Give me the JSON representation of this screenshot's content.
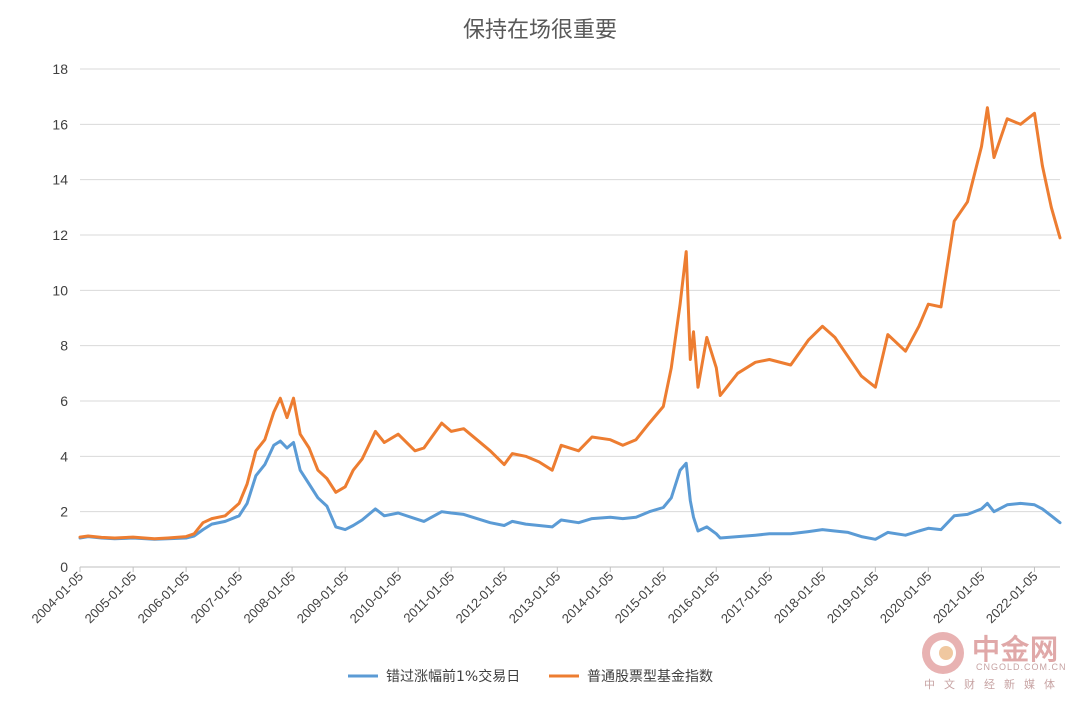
{
  "chart_data": {
    "type": "line",
    "title": "保持在场很重要",
    "xlabel": "",
    "ylabel": "",
    "ylim": [
      0,
      18
    ],
    "yticks": [
      0,
      2,
      4,
      6,
      8,
      10,
      12,
      14,
      16,
      18
    ],
    "xlim": [
      "2004-01-05",
      "2022-06-30"
    ],
    "xticks": [
      "2004-01-05",
      "2005-01-05",
      "2006-01-05",
      "2007-01-05",
      "2008-01-05",
      "2009-01-05",
      "2010-01-05",
      "2011-01-05",
      "2012-01-05",
      "2013-01-05",
      "2014-01-05",
      "2015-01-05",
      "2016-01-05",
      "2017-01-05",
      "2018-01-05",
      "2019-01-05",
      "2020-01-05",
      "2021-01-05",
      "2022-01-05"
    ],
    "grid": true,
    "legend_position": "bottom",
    "series": [
      {
        "name": "错过涨幅前1%交易日",
        "color": "#5b9bd5",
        "points": [
          [
            "2004-01-05",
            1.05
          ],
          [
            "2004-03-01",
            1.1
          ],
          [
            "2004-06-01",
            1.05
          ],
          [
            "2004-09-01",
            1.02
          ],
          [
            "2005-01-05",
            1.05
          ],
          [
            "2005-06-01",
            1.0
          ],
          [
            "2005-09-01",
            1.02
          ],
          [
            "2006-01-05",
            1.05
          ],
          [
            "2006-03-01",
            1.12
          ],
          [
            "2006-05-01",
            1.35
          ],
          [
            "2006-07-01",
            1.55
          ],
          [
            "2006-10-01",
            1.65
          ],
          [
            "2007-01-05",
            1.85
          ],
          [
            "2007-03-01",
            2.3
          ],
          [
            "2007-05-01",
            3.3
          ],
          [
            "2007-07-01",
            3.7
          ],
          [
            "2007-09-01",
            4.4
          ],
          [
            "2007-10-16",
            4.55
          ],
          [
            "2007-12-01",
            4.3
          ],
          [
            "2008-01-15",
            4.5
          ],
          [
            "2008-03-01",
            3.5
          ],
          [
            "2008-05-01",
            3.0
          ],
          [
            "2008-07-01",
            2.5
          ],
          [
            "2008-09-01",
            2.2
          ],
          [
            "2008-11-01",
            1.45
          ],
          [
            "2009-01-05",
            1.35
          ],
          [
            "2009-03-01",
            1.5
          ],
          [
            "2009-05-01",
            1.7
          ],
          [
            "2009-08-01",
            2.1
          ],
          [
            "2009-10-01",
            1.85
          ],
          [
            "2010-01-05",
            1.95
          ],
          [
            "2010-05-01",
            1.75
          ],
          [
            "2010-07-01",
            1.65
          ],
          [
            "2010-11-01",
            2.0
          ],
          [
            "2011-01-05",
            1.95
          ],
          [
            "2011-04-01",
            1.9
          ],
          [
            "2011-07-01",
            1.75
          ],
          [
            "2011-10-01",
            1.6
          ],
          [
            "2012-01-05",
            1.5
          ],
          [
            "2012-03-01",
            1.65
          ],
          [
            "2012-06-01",
            1.55
          ],
          [
            "2012-09-01",
            1.5
          ],
          [
            "2012-12-01",
            1.45
          ],
          [
            "2013-02-01",
            1.7
          ],
          [
            "2013-06-01",
            1.6
          ],
          [
            "2013-09-01",
            1.75
          ],
          [
            "2014-01-05",
            1.8
          ],
          [
            "2014-04-01",
            1.75
          ],
          [
            "2014-07-01",
            1.8
          ],
          [
            "2014-10-01",
            2.0
          ],
          [
            "2015-01-05",
            2.15
          ],
          [
            "2015-03-01",
            2.5
          ],
          [
            "2015-05-01",
            3.5
          ],
          [
            "2015-06-12",
            3.75
          ],
          [
            "2015-07-10",
            2.4
          ],
          [
            "2015-08-01",
            1.8
          ],
          [
            "2015-09-01",
            1.3
          ],
          [
            "2015-11-01",
            1.45
          ],
          [
            "2016-01-05",
            1.2
          ],
          [
            "2016-02-01",
            1.05
          ],
          [
            "2016-06-01",
            1.1
          ],
          [
            "2016-10-01",
            1.15
          ],
          [
            "2017-01-05",
            1.2
          ],
          [
            "2017-06-01",
            1.2
          ],
          [
            "2017-10-01",
            1.28
          ],
          [
            "2018-01-05",
            1.35
          ],
          [
            "2018-04-01",
            1.3
          ],
          [
            "2018-07-01",
            1.25
          ],
          [
            "2018-10-01",
            1.1
          ],
          [
            "2019-01-05",
            1.0
          ],
          [
            "2019-04-01",
            1.25
          ],
          [
            "2019-08-01",
            1.15
          ],
          [
            "2019-11-01",
            1.3
          ],
          [
            "2020-01-05",
            1.4
          ],
          [
            "2020-04-01",
            1.35
          ],
          [
            "2020-07-01",
            1.85
          ],
          [
            "2020-10-01",
            1.9
          ],
          [
            "2021-01-05",
            2.1
          ],
          [
            "2021-02-15",
            2.3
          ],
          [
            "2021-04-01",
            2.0
          ],
          [
            "2021-07-01",
            2.25
          ],
          [
            "2021-10-01",
            2.3
          ],
          [
            "2022-01-05",
            2.25
          ],
          [
            "2022-03-01",
            2.1
          ],
          [
            "2022-05-01",
            1.85
          ],
          [
            "2022-06-30",
            1.6
          ]
        ]
      },
      {
        "name": "普通股票型基金指数",
        "color": "#ed7d31",
        "points": [
          [
            "2004-01-05",
            1.08
          ],
          [
            "2004-03-01",
            1.12
          ],
          [
            "2004-06-01",
            1.07
          ],
          [
            "2004-09-01",
            1.05
          ],
          [
            "2005-01-05",
            1.08
          ],
          [
            "2005-06-01",
            1.02
          ],
          [
            "2005-09-01",
            1.05
          ],
          [
            "2006-01-05",
            1.1
          ],
          [
            "2006-03-01",
            1.2
          ],
          [
            "2006-05-01",
            1.6
          ],
          [
            "2006-07-01",
            1.75
          ],
          [
            "2006-10-01",
            1.85
          ],
          [
            "2007-01-05",
            2.3
          ],
          [
            "2007-03-01",
            3.0
          ],
          [
            "2007-05-01",
            4.2
          ],
          [
            "2007-07-01",
            4.6
          ],
          [
            "2007-09-01",
            5.6
          ],
          [
            "2007-10-16",
            6.1
          ],
          [
            "2007-12-01",
            5.4
          ],
          [
            "2008-01-15",
            6.1
          ],
          [
            "2008-03-01",
            4.8
          ],
          [
            "2008-05-01",
            4.3
          ],
          [
            "2008-07-01",
            3.5
          ],
          [
            "2008-09-01",
            3.2
          ],
          [
            "2008-11-01",
            2.7
          ],
          [
            "2009-01-05",
            2.9
          ],
          [
            "2009-03-01",
            3.5
          ],
          [
            "2009-05-01",
            3.9
          ],
          [
            "2009-08-01",
            4.9
          ],
          [
            "2009-10-01",
            4.5
          ],
          [
            "2010-01-05",
            4.8
          ],
          [
            "2010-05-01",
            4.2
          ],
          [
            "2010-07-01",
            4.3
          ],
          [
            "2010-11-01",
            5.2
          ],
          [
            "2011-01-05",
            4.9
          ],
          [
            "2011-04-01",
            5.0
          ],
          [
            "2011-07-01",
            4.6
          ],
          [
            "2011-10-01",
            4.2
          ],
          [
            "2012-01-05",
            3.7
          ],
          [
            "2012-03-01",
            4.1
          ],
          [
            "2012-06-01",
            4.0
          ],
          [
            "2012-09-01",
            3.8
          ],
          [
            "2012-12-01",
            3.5
          ],
          [
            "2013-02-01",
            4.4
          ],
          [
            "2013-06-01",
            4.2
          ],
          [
            "2013-09-01",
            4.7
          ],
          [
            "2014-01-05",
            4.6
          ],
          [
            "2014-04-01",
            4.4
          ],
          [
            "2014-07-01",
            4.6
          ],
          [
            "2014-10-01",
            5.2
          ],
          [
            "2015-01-05",
            5.8
          ],
          [
            "2015-03-01",
            7.2
          ],
          [
            "2015-05-01",
            9.5
          ],
          [
            "2015-06-12",
            11.4
          ],
          [
            "2015-07-10",
            7.5
          ],
          [
            "2015-08-01",
            8.5
          ],
          [
            "2015-09-01",
            6.5
          ],
          [
            "2015-11-01",
            8.3
          ],
          [
            "2016-01-05",
            7.2
          ],
          [
            "2016-02-01",
            6.2
          ],
          [
            "2016-06-01",
            7.0
          ],
          [
            "2016-10-01",
            7.4
          ],
          [
            "2017-01-05",
            7.5
          ],
          [
            "2017-06-01",
            7.3
          ],
          [
            "2017-10-01",
            8.2
          ],
          [
            "2018-01-05",
            8.7
          ],
          [
            "2018-04-01",
            8.3
          ],
          [
            "2018-07-01",
            7.6
          ],
          [
            "2018-10-01",
            6.9
          ],
          [
            "2019-01-05",
            6.5
          ],
          [
            "2019-04-01",
            8.4
          ],
          [
            "2019-08-01",
            7.8
          ],
          [
            "2019-11-01",
            8.7
          ],
          [
            "2020-01-05",
            9.5
          ],
          [
            "2020-04-01",
            9.4
          ],
          [
            "2020-07-01",
            12.5
          ],
          [
            "2020-10-01",
            13.2
          ],
          [
            "2021-01-05",
            15.2
          ],
          [
            "2021-02-15",
            16.6
          ],
          [
            "2021-04-01",
            14.8
          ],
          [
            "2021-07-01",
            16.2
          ],
          [
            "2021-10-01",
            16.0
          ],
          [
            "2022-01-05",
            16.4
          ],
          [
            "2022-03-01",
            14.5
          ],
          [
            "2022-05-01",
            13.0
          ],
          [
            "2022-06-30",
            11.9
          ]
        ]
      }
    ]
  },
  "watermark": {
    "brand": "中金网",
    "domain": "CNGOLD.COM.CN",
    "tagline": "中文财经新媒体"
  }
}
